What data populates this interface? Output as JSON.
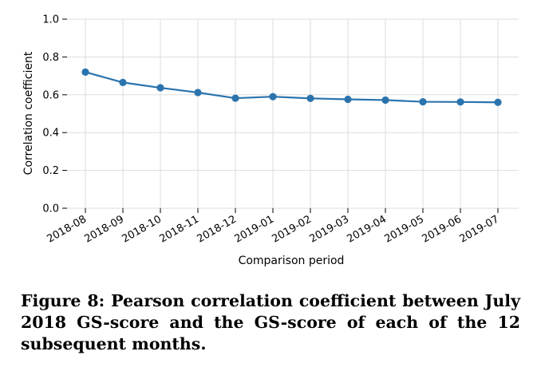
{
  "chart_data": {
    "type": "line",
    "xlabel": "Comparison period",
    "ylabel": "Correlation coefficient",
    "ylim": [
      0.0,
      1.0
    ],
    "yticks": [
      "0.0",
      "0.2",
      "0.4",
      "0.6",
      "0.8",
      "1.0"
    ],
    "grid": true,
    "categories": [
      "2018-08",
      "2018-09",
      "2018-10",
      "2018-11",
      "2018-12",
      "2019-01",
      "2019-02",
      "2019-03",
      "2019-04",
      "2019-05",
      "2019-06",
      "2019-07"
    ],
    "series": [
      {
        "values": [
          0.72,
          0.665,
          0.637,
          0.612,
          0.582,
          0.59,
          0.581,
          0.576,
          0.572,
          0.563,
          0.562,
          0.56
        ],
        "color": "#2a73ad"
      }
    ]
  },
  "caption": "Figure 8: Pearson correlation coefficient between July 2018 GS-score and the GS-score of each of the 12 subsequent months."
}
